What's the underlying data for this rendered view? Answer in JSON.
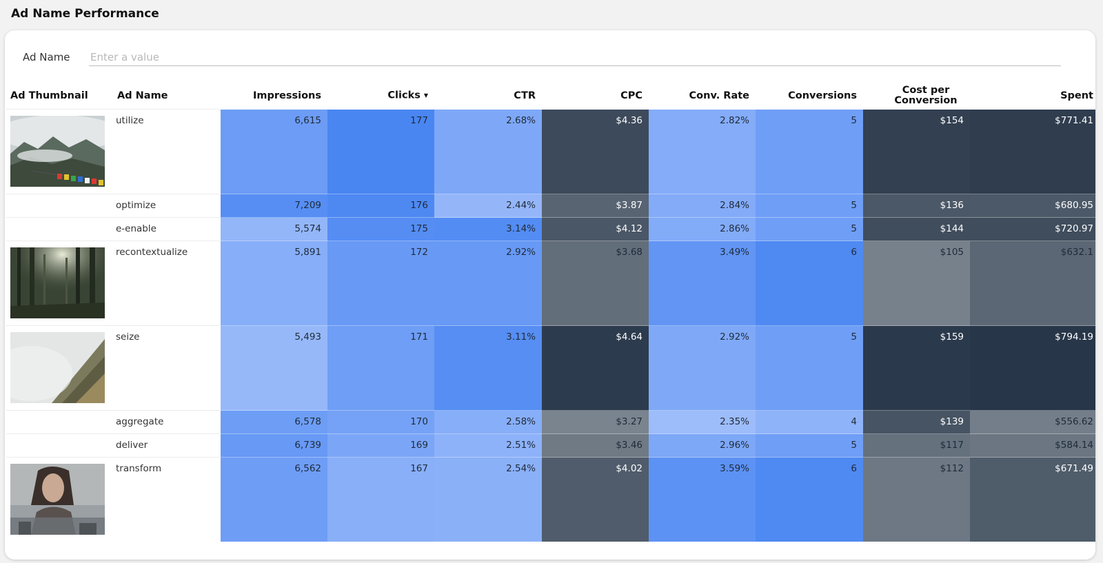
{
  "page": {
    "title": "Ad Name Performance"
  },
  "filter": {
    "label": "Ad Name",
    "placeholder": "Enter a value"
  },
  "table": {
    "columns": [
      "Ad Thumbnail",
      "Ad Name",
      "Impressions",
      "Clicks",
      "CTR",
      "CPC",
      "Conv. Rate",
      "Conversions",
      "Cost per Conversion",
      "Spent"
    ],
    "sort_column": "Clicks",
    "sort_direction": "descending",
    "rows": [
      {
        "thumbnail": "mountain-prayer-flags",
        "name": "utilize",
        "impressions": "6,615",
        "clicks": "177",
        "ctr": "2.68%",
        "cpc": "$4.36",
        "conv_rate": "2.82%",
        "conversions": "5",
        "cost_per_conversion": "$154",
        "spent": "$771.41"
      },
      {
        "thumbnail": "",
        "name": "optimize",
        "impressions": "7,209",
        "clicks": "176",
        "ctr": "2.44%",
        "cpc": "$3.87",
        "conv_rate": "2.84%",
        "conversions": "5",
        "cost_per_conversion": "$136",
        "spent": "$680.95"
      },
      {
        "thumbnail": "",
        "name": "e-enable",
        "impressions": "5,574",
        "clicks": "175",
        "ctr": "3.14%",
        "cpc": "$4.12",
        "conv_rate": "2.86%",
        "conversions": "5",
        "cost_per_conversion": "$144",
        "spent": "$720.97"
      },
      {
        "thumbnail": "forest-sunlight",
        "name": "recontextualize",
        "impressions": "5,891",
        "clicks": "172",
        "ctr": "2.92%",
        "cpc": "$3.68",
        "conv_rate": "3.49%",
        "conversions": "6",
        "cost_per_conversion": "$105",
        "spent": "$632.1"
      },
      {
        "thumbnail": "misty-slope",
        "name": "seize",
        "impressions": "5,493",
        "clicks": "171",
        "ctr": "3.11%",
        "cpc": "$4.64",
        "conv_rate": "2.92%",
        "conversions": "5",
        "cost_per_conversion": "$159",
        "spent": "$794.19"
      },
      {
        "thumbnail": "",
        "name": "aggregate",
        "impressions": "6,578",
        "clicks": "170",
        "ctr": "2.58%",
        "cpc": "$3.27",
        "conv_rate": "2.35%",
        "conversions": "4",
        "cost_per_conversion": "$139",
        "spent": "$556.62"
      },
      {
        "thumbnail": "",
        "name": "deliver",
        "impressions": "6,739",
        "clicks": "169",
        "ctr": "2.51%",
        "cpc": "$3.46",
        "conv_rate": "2.96%",
        "conversions": "5",
        "cost_per_conversion": "$117",
        "spent": "$584.14"
      },
      {
        "thumbnail": "woman-portrait",
        "name": "transform",
        "impressions": "6,562",
        "clicks": "167",
        "ctr": "2.54%",
        "cpc": "$4.02",
        "conv_rate": "3.59%",
        "conversions": "6",
        "cost_per_conversion": "$112",
        "spent": "$671.49"
      }
    ]
  },
  "colors": {
    "blue_heatmap_low": "#a6c2fb",
    "blue_heatmap_high": "#4a86f2",
    "slate_heatmap_low": "#8a939c",
    "slate_heatmap_high": "#1d2c40"
  }
}
